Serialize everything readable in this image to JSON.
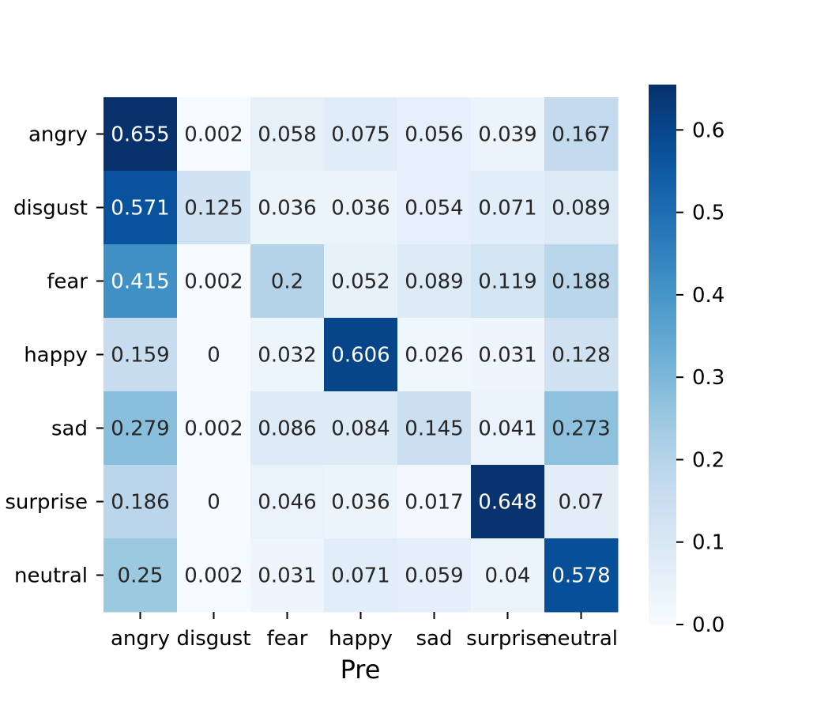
{
  "chart_data": {
    "type": "heatmap",
    "title": "",
    "xlabel": "Pre",
    "ylabel": "",
    "x_categories": [
      "angry",
      "disgust",
      "fear",
      "happy",
      "sad",
      "surprise",
      "neutral"
    ],
    "y_categories": [
      "angry",
      "disgust",
      "fear",
      "happy",
      "sad",
      "surprise",
      "neutral"
    ],
    "values": [
      [
        0.655,
        0.002,
        0.058,
        0.075,
        0.056,
        0.039,
        0.167
      ],
      [
        0.571,
        0.125,
        0.036,
        0.036,
        0.054,
        0.071,
        0.089
      ],
      [
        0.415,
        0.002,
        0.2,
        0.052,
        0.089,
        0.119,
        0.188
      ],
      [
        0.159,
        0,
        0.032,
        0.606,
        0.026,
        0.031,
        0.128
      ],
      [
        0.279,
        0.002,
        0.086,
        0.084,
        0.145,
        0.041,
        0.273
      ],
      [
        0.186,
        0,
        0.046,
        0.036,
        0.017,
        0.648,
        0.07
      ],
      [
        0.25,
        0.002,
        0.031,
        0.071,
        0.059,
        0.04,
        0.578
      ]
    ],
    "colorbar": {
      "colormap": "Blues",
      "range": [
        0.0,
        0.655
      ],
      "ticks": [
        0.0,
        0.1,
        0.2,
        0.3,
        0.4,
        0.5,
        0.6
      ],
      "tick_labels": [
        "0.0",
        "0.1",
        "0.2",
        "0.3",
        "0.4",
        "0.5",
        "0.6"
      ]
    },
    "grid": false
  }
}
